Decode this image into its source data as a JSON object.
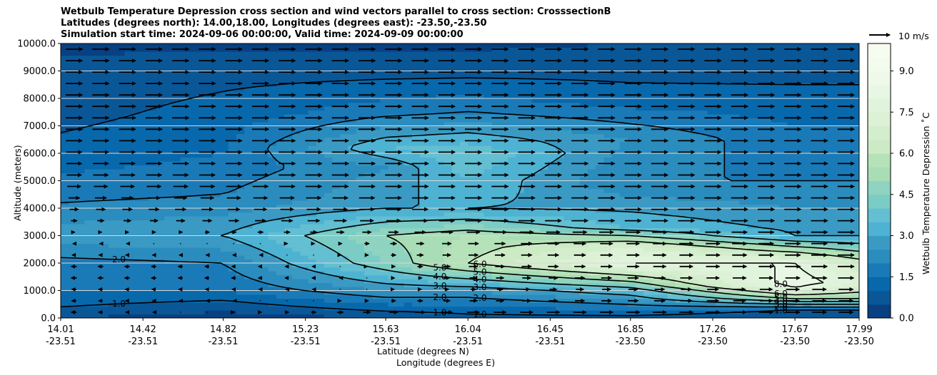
{
  "chart_data": {
    "type": "heatmap",
    "title_lines": [
      "Wetbulb Temperature Depression cross section and wind vectors parallel to cross section: CrosssectionB",
      "Latitudes (degrees north): 14.00,18.00, Longitudes (degrees east): -23.50,-23.50",
      "Simulation start time: 2024-09-06 00:00:00, Valid time: 2024-09-09 00:00:00"
    ],
    "ylabel": "Altitude (meters)",
    "xlabel_lat": "Latitude (degrees N)",
    "xlabel_lon": "Longitude (degrees E)",
    "ylim": [
      0,
      10000
    ],
    "yticks": [
      "0.0",
      "1000.0",
      "2000.0",
      "3000.0",
      "4000.0",
      "5000.0",
      "6000.0",
      "7000.0",
      "8000.0",
      "9000.0",
      "10000.0"
    ],
    "ytick_values": [
      0,
      1000,
      2000,
      3000,
      4000,
      5000,
      6000,
      7000,
      8000,
      9000,
      10000
    ],
    "xlim": [
      14.01,
      17.99
    ],
    "xtick_lats": [
      "14.01",
      "14.42",
      "14.82",
      "15.23",
      "15.63",
      "16.04",
      "16.45",
      "16.85",
      "17.26",
      "17.67",
      "17.99"
    ],
    "xtick_lons": [
      "-23.51",
      "-23.51",
      "-23.51",
      "-23.51",
      "-23.51",
      "-23.51",
      "-23.51",
      "-23.50",
      "-23.50",
      "-23.50",
      "-23.50"
    ],
    "xtick_values": [
      14.01,
      14.42,
      14.82,
      15.23,
      15.63,
      16.04,
      16.45,
      16.85,
      17.26,
      17.67,
      17.99
    ],
    "grid": "horizontal",
    "colorbar": {
      "label": "Wetbulb Temperature Depression $^\\circ$C",
      "label_display": "Wetbulb Temperature Depression ˚C",
      "range": [
        0,
        10
      ],
      "ticks": [
        "0.0",
        "1.5",
        "3.0",
        "4.5",
        "6.0",
        "7.5",
        "9.0"
      ],
      "tick_values": [
        0,
        1.5,
        3,
        4.5,
        6,
        7.5,
        9
      ],
      "levels": [
        0,
        0.5,
        1,
        1.5,
        2,
        2.5,
        3,
        3.5,
        4,
        4.5,
        5,
        5.5,
        6,
        6.5,
        7,
        7.5,
        8,
        8.5,
        9,
        9.5,
        10
      ],
      "colormap": "GnBu_r",
      "colors": [
        "#084081",
        "#0a5797",
        "#0868ac",
        "#1a7ab8",
        "#2b8cbe",
        "#3a9ac4",
        "#4eb3d3",
        "#63bfd1",
        "#7bccc4",
        "#8fd3c0",
        "#a8ddb5",
        "#b5e2b8",
        "#ccebc5",
        "#d4eecd",
        "#dcf1d5",
        "#e0f3db",
        "#e8f6e4",
        "#eef9ea",
        "#f3fbef",
        "#f7fcf0"
      ]
    },
    "quiver_key": {
      "label": "10 m/s",
      "magnitude": 10
    },
    "contour_labels": [
      "1.0",
      "2.0",
      "3.0",
      "4.0",
      "5.0",
      "6.0",
      "8.0"
    ],
    "depression_field": [
      {
        "x": 14.01,
        "profile": [
          [
            0,
            0.5
          ],
          [
            400,
            1.0
          ],
          [
            1000,
            1.5
          ],
          [
            2000,
            1.8
          ],
          [
            3000,
            2.8
          ],
          [
            4500,
            1.8
          ],
          [
            6000,
            1.2
          ],
          [
            7500,
            0.8
          ],
          [
            9000,
            0.6
          ],
          [
            10000,
            0.4
          ]
        ]
      },
      {
        "x": 14.82,
        "profile": [
          [
            0,
            0.2
          ],
          [
            500,
            0.8
          ],
          [
            1000,
            1.5
          ],
          [
            2000,
            2.0
          ],
          [
            3000,
            3.0
          ],
          [
            4500,
            2.0
          ],
          [
            6000,
            1.5
          ],
          [
            7500,
            1.2
          ],
          [
            9000,
            0.8
          ],
          [
            10000,
            0.4
          ]
        ]
      },
      {
        "x": 15.63,
        "profile": [
          [
            0,
            0.5
          ],
          [
            500,
            1.5
          ],
          [
            1000,
            2.5
          ],
          [
            2000,
            4.5
          ],
          [
            3000,
            5.0
          ],
          [
            4000,
            3.0
          ],
          [
            5500,
            2.5
          ],
          [
            6200,
            3.5
          ],
          [
            7500,
            1.8
          ],
          [
            9000,
            0.8
          ],
          [
            10000,
            0.4
          ]
        ]
      },
      {
        "x": 16.04,
        "profile": [
          [
            0,
            0.8
          ],
          [
            500,
            1.5
          ],
          [
            1000,
            2.5
          ],
          [
            2000,
            6.0
          ],
          [
            3000,
            5.5
          ],
          [
            4000,
            3.0
          ],
          [
            6000,
            4.0
          ],
          [
            7500,
            2.0
          ],
          [
            9000,
            0.8
          ],
          [
            10000,
            0.4
          ]
        ]
      },
      {
        "x": 16.85,
        "profile": [
          [
            0,
            0.8
          ],
          [
            500,
            2.0
          ],
          [
            1000,
            3.5
          ],
          [
            2000,
            8.0
          ],
          [
            2600,
            7.0
          ],
          [
            3300,
            3.5
          ],
          [
            5000,
            2.0
          ],
          [
            6500,
            2.5
          ],
          [
            8000,
            1.2
          ],
          [
            10000,
            0.5
          ]
        ]
      },
      {
        "x": 17.67,
        "profile": [
          [
            0,
            0.5
          ],
          [
            300,
            1.0
          ],
          [
            700,
            5.0
          ],
          [
            1200,
            8.5
          ],
          [
            2000,
            8.0
          ],
          [
            3000,
            3.0
          ],
          [
            5000,
            2.0
          ],
          [
            7000,
            1.5
          ],
          [
            8500,
            1.0
          ],
          [
            10000,
            0.5
          ]
        ]
      },
      {
        "x": 17.99,
        "profile": [
          [
            0,
            0.5
          ],
          [
            300,
            1.0
          ],
          [
            700,
            5.0
          ],
          [
            1300,
            7.5
          ],
          [
            2000,
            6.5
          ],
          [
            3000,
            3.0
          ],
          [
            5000,
            2.0
          ],
          [
            7000,
            1.5
          ],
          [
            8500,
            1.0
          ],
          [
            10000,
            0.5
          ]
        ]
      }
    ],
    "wind_field": [
      {
        "x": 14.01,
        "profile": [
          [
            0,
            -3
          ],
          [
            900,
            -2
          ],
          [
            1700,
            -3
          ],
          [
            2800,
            -1
          ],
          [
            3600,
            3
          ],
          [
            5000,
            7
          ],
          [
            7000,
            8
          ],
          [
            9000,
            8
          ],
          [
            10000,
            8
          ]
        ]
      },
      {
        "x": 15.23,
        "profile": [
          [
            0,
            3
          ],
          [
            900,
            -1
          ],
          [
            1700,
            -2
          ],
          [
            2800,
            1
          ],
          [
            3600,
            6
          ],
          [
            5000,
            8
          ],
          [
            7000,
            8
          ],
          [
            9000,
            8
          ],
          [
            10000,
            8
          ]
        ]
      },
      {
        "x": 16.04,
        "profile": [
          [
            0,
            7
          ],
          [
            900,
            2
          ],
          [
            1700,
            4
          ],
          [
            2800,
            5
          ],
          [
            3600,
            8
          ],
          [
            5000,
            8
          ],
          [
            7000,
            8
          ],
          [
            9000,
            8
          ],
          [
            10000,
            8
          ]
        ]
      },
      {
        "x": 17.99,
        "profile": [
          [
            0,
            7
          ],
          [
            900,
            7
          ],
          [
            1700,
            8
          ],
          [
            2800,
            8
          ],
          [
            3600,
            8
          ],
          [
            5000,
            8
          ],
          [
            7000,
            8
          ],
          [
            9000,
            8
          ],
          [
            10000,
            8
          ]
        ]
      }
    ]
  }
}
